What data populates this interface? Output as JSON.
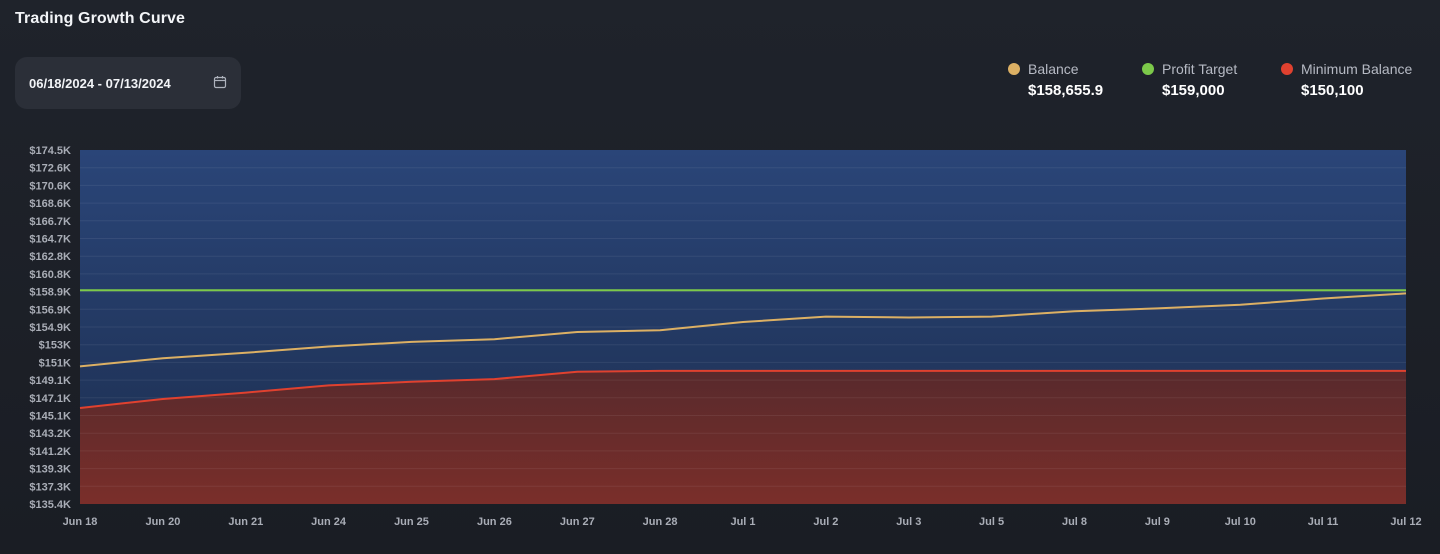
{
  "header": {
    "title": "Trading Growth Curve",
    "date_range": "06/18/2024 - 07/13/2024"
  },
  "legend": [
    {
      "key": "balance",
      "label": "Balance",
      "value": "$158,655.9",
      "color": "#dcb064"
    },
    {
      "key": "profit_target",
      "label": "Profit Target",
      "value": "$159,000",
      "color": "#7cc94a"
    },
    {
      "key": "minimum_balance",
      "label": "Minimum Balance",
      "value": "$150,100",
      "color": "#e0412f"
    }
  ],
  "chart_data": {
    "type": "line",
    "x": [
      "Jun 18",
      "Jun 20",
      "Jun 21",
      "Jun 24",
      "Jun 25",
      "Jun 26",
      "Jun 27",
      "Jun 28",
      "Jul 1",
      "Jul 2",
      "Jul 3",
      "Jul 5",
      "Jul 8",
      "Jul 9",
      "Jul 10",
      "Jul 11",
      "Jul 12"
    ],
    "y_ticks": [
      "$174.5K",
      "$172.6K",
      "$170.6K",
      "$168.6K",
      "$166.7K",
      "$164.7K",
      "$162.8K",
      "$160.8K",
      "$158.9K",
      "$156.9K",
      "$154.9K",
      "$153K",
      "$151K",
      "$149.1K",
      "$147.1K",
      "$145.1K",
      "$143.2K",
      "$141.2K",
      "$139.3K",
      "$137.3K",
      "$135.4K"
    ],
    "ylim": [
      135400,
      174500
    ],
    "series": [
      {
        "name": "Balance",
        "color": "#dcb064",
        "values": [
          150600,
          151500,
          152100,
          152800,
          153300,
          153600,
          154400,
          154600,
          155500,
          156100,
          156000,
          156100,
          156700,
          157000,
          157400,
          158100,
          158656
        ]
      },
      {
        "name": "Profit Target",
        "color": "#7cc94a",
        "values": [
          159000,
          159000,
          159000,
          159000,
          159000,
          159000,
          159000,
          159000,
          159000,
          159000,
          159000,
          159000,
          159000,
          159000,
          159000,
          159000,
          159000
        ]
      },
      {
        "name": "Minimum Balance",
        "color": "#e0412f",
        "values": [
          146000,
          147000,
          147700,
          148500,
          148900,
          149200,
          150000,
          150100,
          150100,
          150100,
          150100,
          150100,
          150100,
          150100,
          150100,
          150100,
          150100
        ]
      }
    ],
    "fills": {
      "upper_color": "#26406e",
      "lower_color": "#6a2a2a"
    }
  }
}
